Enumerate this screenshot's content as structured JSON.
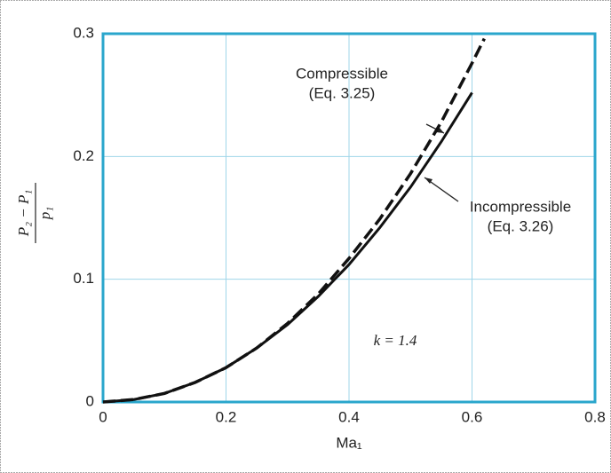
{
  "chart_data": {
    "type": "line",
    "xlabel": "Ma₁",
    "ylabel_numerator": "P₂ − P₁",
    "ylabel_denominator": "p₁",
    "x": [
      0,
      0.05,
      0.1,
      0.15,
      0.2,
      0.25,
      0.3,
      0.35,
      0.4,
      0.45,
      0.5,
      0.55,
      0.6,
      0.62
    ],
    "series": [
      {
        "name": "Compressible",
        "color": "#111111",
        "dashed": true,
        "values": [
          0,
          0.002,
          0.007,
          0.016,
          0.028,
          0.044,
          0.064,
          0.088,
          0.117,
          0.149,
          0.186,
          0.228,
          0.276,
          0.296
        ]
      },
      {
        "name": "Incompressible",
        "color": "#111111",
        "dashed": false,
        "values": [
          0,
          0.002,
          0.007,
          0.016,
          0.028,
          0.044,
          0.063,
          0.086,
          0.112,
          0.142,
          0.175,
          0.212,
          0.252,
          null
        ]
      }
    ],
    "annotations": [
      {
        "lines": [
          "Compressible",
          "(Eq. 3.25)"
        ]
      },
      {
        "lines": [
          "Incompressible",
          "(Eq. 3.26)"
        ]
      },
      {
        "lines": [
          "k = 1.4"
        ]
      }
    ],
    "xlim": [
      0,
      0.8
    ],
    "xticks": [
      0,
      0.2,
      0.4,
      0.6,
      0.8
    ],
    "ylim": [
      0,
      0.3
    ],
    "yticks": [
      0,
      0.1,
      0.2,
      0.3
    ],
    "grid": true,
    "frame_color": "#2aa6cc",
    "grid_color": "#9fd6ea"
  }
}
